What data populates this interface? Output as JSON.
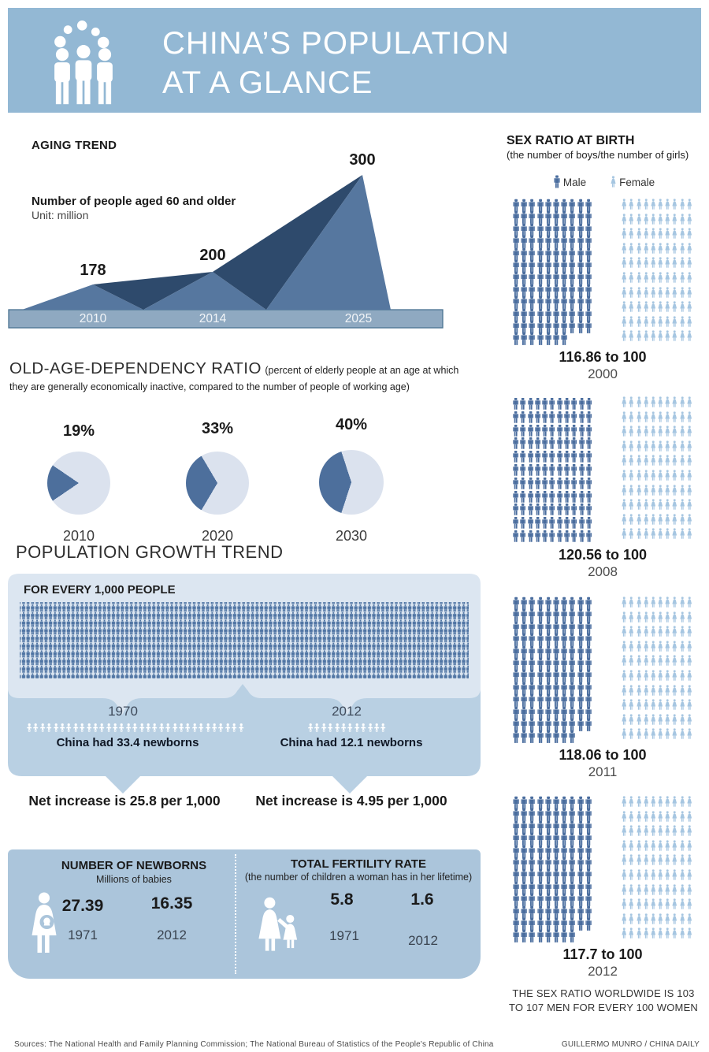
{
  "header": {
    "title_line1": "CHINA’S POPULATION",
    "title_line2": "AT A GLANCE"
  },
  "aging": {
    "title": "AGING TREND",
    "series_label": "Number of people aged 60 and older",
    "unit_label": "Unit: million",
    "values": [
      "178",
      "200",
      "300"
    ],
    "years": [
      "2010",
      "2014",
      "2025"
    ]
  },
  "dependency": {
    "title": "OLD-AGE-DEPENDENCY RATIO",
    "subtitle": "(percent of elderly people at an age at which they are generally economically inactive, compared to the number of people of working age)",
    "pies": [
      {
        "pct": "19%",
        "year": "2010",
        "value": 19
      },
      {
        "pct": "33%",
        "year": "2020",
        "value": 33
      },
      {
        "pct": "40%",
        "year": "2030",
        "value": 40
      }
    ]
  },
  "growth": {
    "title": "POPULATION GROWTH TREND",
    "grid_label": "FOR EVERY 1,000 PEOPLE",
    "periods": [
      {
        "year": "1970",
        "caption": "China had 33.4 newborns",
        "net": "Net increase is 25.8 per 1,000",
        "icons": 33
      },
      {
        "year": "2012",
        "caption": "China had 12.1 newborns",
        "net": "Net increase is 4.95 per 1,000",
        "icons": 12
      }
    ]
  },
  "newborns": {
    "title": "NUMBER OF NEWBORNS",
    "subtitle": "Millions of babies",
    "entries": [
      {
        "value": "27.39",
        "year": "1971"
      },
      {
        "value": "16.35",
        "year": "2012"
      }
    ]
  },
  "fertility": {
    "title": "TOTAL FERTILITY RATE",
    "subtitle": "(the number of children a woman has in her lifetime)",
    "entries": [
      {
        "value": "5.8",
        "year": "1971"
      },
      {
        "value": "1.6",
        "year": "2012"
      }
    ]
  },
  "sex_ratio": {
    "title": "SEX RATIO AT BIRTH",
    "subtitle": "(the number of boys/the number of girls)",
    "legend": {
      "male": "Male",
      "female": "Female"
    },
    "groups": [
      {
        "ratio": "116.86 to 100",
        "year": "2000",
        "male": 117,
        "female": 100
      },
      {
        "ratio": "120.56 to 100",
        "year": "2008",
        "male": 121,
        "female": 100
      },
      {
        "ratio": "118.06 to 100",
        "year": "2011",
        "male": 118,
        "female": 100
      },
      {
        "ratio": "117.7 to 100",
        "year": "2012",
        "male": 118,
        "female": 100
      }
    ],
    "note_line1": "THE SEX RATIO WORLDWIDE IS 103",
    "note_line2": "TO 107 MEN FOR EVERY 100 WOMEN"
  },
  "footer": {
    "sources": "Sources: The National Health and Family Planning Commission; The National Bureau of Statistics of the People's Republic of China",
    "credit": "GUILLERMO MUNRO / CHINA DAILY"
  },
  "colors": {
    "header_bg": "#93b8d4",
    "mountain_mid": "#56779f",
    "mountain_dark": "#2e4a6c",
    "axis_bar": "#8fa9c1",
    "pie_dark": "#4d6f9c",
    "pie_light": "#dbe2ee",
    "panel_light": "#dce6f1",
    "panel_mid": "#b9d0e3",
    "panel_bottom": "#abc5db",
    "male": "#4a6d9e",
    "female": "#a6c6e1"
  },
  "chart_data": [
    {
      "type": "area",
      "title": "AGING TREND",
      "series_label": "Number of people aged 60 and older",
      "unit": "million",
      "x": [
        "2010",
        "2014",
        "2025"
      ],
      "values": [
        178,
        200,
        300
      ]
    },
    {
      "type": "pie",
      "title": "OLD-AGE-DEPENDENCY RATIO",
      "unit": "%",
      "categories": [
        "2010",
        "2020",
        "2030"
      ],
      "values": [
        19,
        33,
        40
      ]
    },
    {
      "type": "pictogram",
      "title": "SEX RATIO AT BIRTH",
      "categories": [
        "2000",
        "2008",
        "2011",
        "2012"
      ],
      "series": [
        {
          "name": "Male",
          "values": [
            116.86,
            120.56,
            118.06,
            117.7
          ]
        },
        {
          "name": "Female",
          "values": [
            100,
            100,
            100,
            100
          ]
        }
      ],
      "note": "The sex ratio worldwide is 103 to 107 men for every 100 women"
    },
    {
      "type": "pictogram",
      "title": "POPULATION GROWTH TREND",
      "base": "per 1,000 people",
      "categories": [
        "1970",
        "2012"
      ],
      "series": [
        {
          "name": "Newborns per 1,000",
          "values": [
            33.4,
            12.1
          ]
        },
        {
          "name": "Net increase per 1,000",
          "values": [
            25.8,
            4.95
          ]
        }
      ]
    },
    {
      "type": "table",
      "title": "NUMBER OF NEWBORNS",
      "unit": "Millions of babies",
      "categories": [
        "1971",
        "2012"
      ],
      "values": [
        27.39,
        16.35
      ]
    },
    {
      "type": "table",
      "title": "TOTAL FERTILITY RATE",
      "categories": [
        "1971",
        "2012"
      ],
      "values": [
        5.8,
        1.6
      ]
    }
  ]
}
